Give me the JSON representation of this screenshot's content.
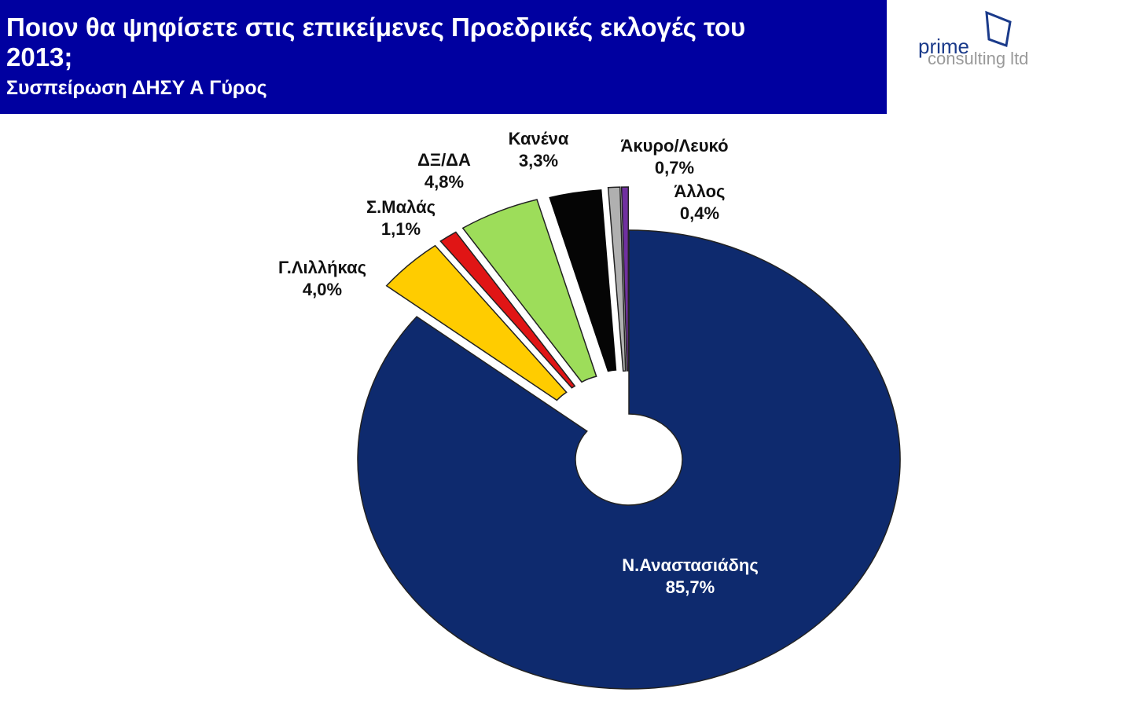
{
  "chart_data": {
    "type": "doughnut",
    "title": "Ποιον θα ψηφίσετε στις επικείμενες Προεδρικές εκλογές του 2013;",
    "subtitle": "Συσπείρωση ΔΗΣΥ Α Γύρος",
    "categories": [
      "Ν.Αναστασιάδης",
      "Γ.Λιλλήκας",
      "Σ.Μαλάς",
      "ΔΞ/ΔΑ",
      "Κανένα",
      "Άκυρο/Λευκό",
      "Άλλος"
    ],
    "values": [
      85.7,
      4.0,
      1.1,
      4.8,
      3.3,
      0.7,
      0.4
    ],
    "value_labels": [
      "85,7%",
      "4,0%",
      "1,1%",
      "4,8%",
      "3,3%",
      "0,7%",
      "0,4%"
    ],
    "colors": [
      "#0e2a6e",
      "#ffcc00",
      "#e01515",
      "#9ddd5a",
      "#050505",
      "#b0b0b0",
      "#7030a0"
    ]
  },
  "logo": {
    "line1": "prime",
    "line2": "consulting ltd"
  }
}
